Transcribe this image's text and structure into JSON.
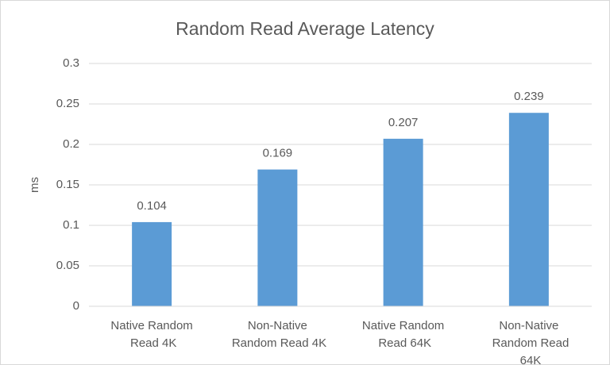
{
  "chart_data": {
    "type": "bar",
    "title": "Random Read Average Latency",
    "y_label": "ms",
    "categories": [
      "Native Random Read 4K",
      "Non-Native Random Read 4K",
      "Native Random Read 64K",
      "Non-Native Random Read 64K"
    ],
    "values": [
      0.104,
      0.169,
      0.207,
      0.239
    ],
    "color": "#5b9bd5",
    "ylim": [
      0,
      0.3
    ],
    "yticks": [
      0,
      0.05,
      0.1,
      0.15,
      0.2,
      0.25,
      0.3
    ],
    "grid": true
  }
}
